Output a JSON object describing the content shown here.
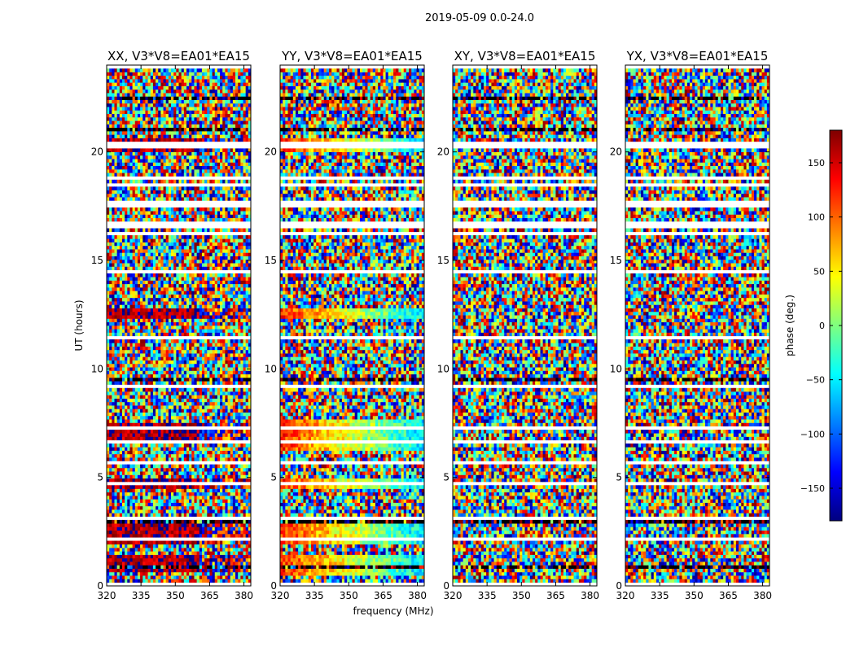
{
  "figure": {
    "suptitle": "2019-05-09 0.0-24.0"
  },
  "chart_data": {
    "type": "heatmap",
    "x_axis": {
      "label": "frequency (MHz)",
      "range": [
        320,
        383
      ],
      "ticks": [
        320,
        335,
        350,
        365,
        380
      ]
    },
    "y_axis": {
      "label": "UT (hours)",
      "range": [
        0,
        24
      ],
      "ticks": [
        0,
        5,
        10,
        15,
        20
      ]
    },
    "colorbar": {
      "label": "phase (deg.)",
      "range": [
        -180,
        180
      ],
      "ticks": [
        -150,
        -100,
        -50,
        0,
        50,
        100,
        150
      ],
      "colormap": "jet",
      "colors": [
        "#00007f",
        "#0000ff",
        "#007fff",
        "#00ffff",
        "#7fff7f",
        "#ffff00",
        "#ff7f00",
        "#ff0000",
        "#7f0000"
      ]
    },
    "panels": [
      {
        "title": "XX, V3*V8=EA01*EA15",
        "coherent_bias_deg": 165,
        "coherent_slope_deg_per_mhz": 0,
        "coherent_hours": [
          [
            0.7,
            1.5
          ],
          [
            2.0,
            3.0
          ],
          [
            4.5,
            5.0
          ],
          [
            6.5,
            7.5
          ],
          [
            12.4,
            12.8
          ],
          [
            20.0,
            20.6
          ]
        ]
      },
      {
        "title": "YY, V3*V8=EA01*EA15",
        "coherent_bias_deg": 120,
        "coherent_slope_deg_per_mhz": -2.8,
        "coherent_hours": [
          [
            0.5,
            1.5
          ],
          [
            2.0,
            3.0
          ],
          [
            4.5,
            5.0
          ],
          [
            6.3,
            7.6
          ],
          [
            12.4,
            12.8
          ],
          [
            20.0,
            20.6
          ]
        ]
      },
      {
        "title": "XY, V3*V8=EA01*EA15",
        "coherent_bias_deg": null,
        "coherent_slope_deg_per_mhz": 0,
        "coherent_hours": []
      },
      {
        "title": "YX, V3*V8=EA01*EA15",
        "coherent_bias_deg": null,
        "coherent_slope_deg_per_mhz": 0,
        "coherent_hours": []
      }
    ],
    "flagged_rows": "white gaps",
    "grid": false
  }
}
